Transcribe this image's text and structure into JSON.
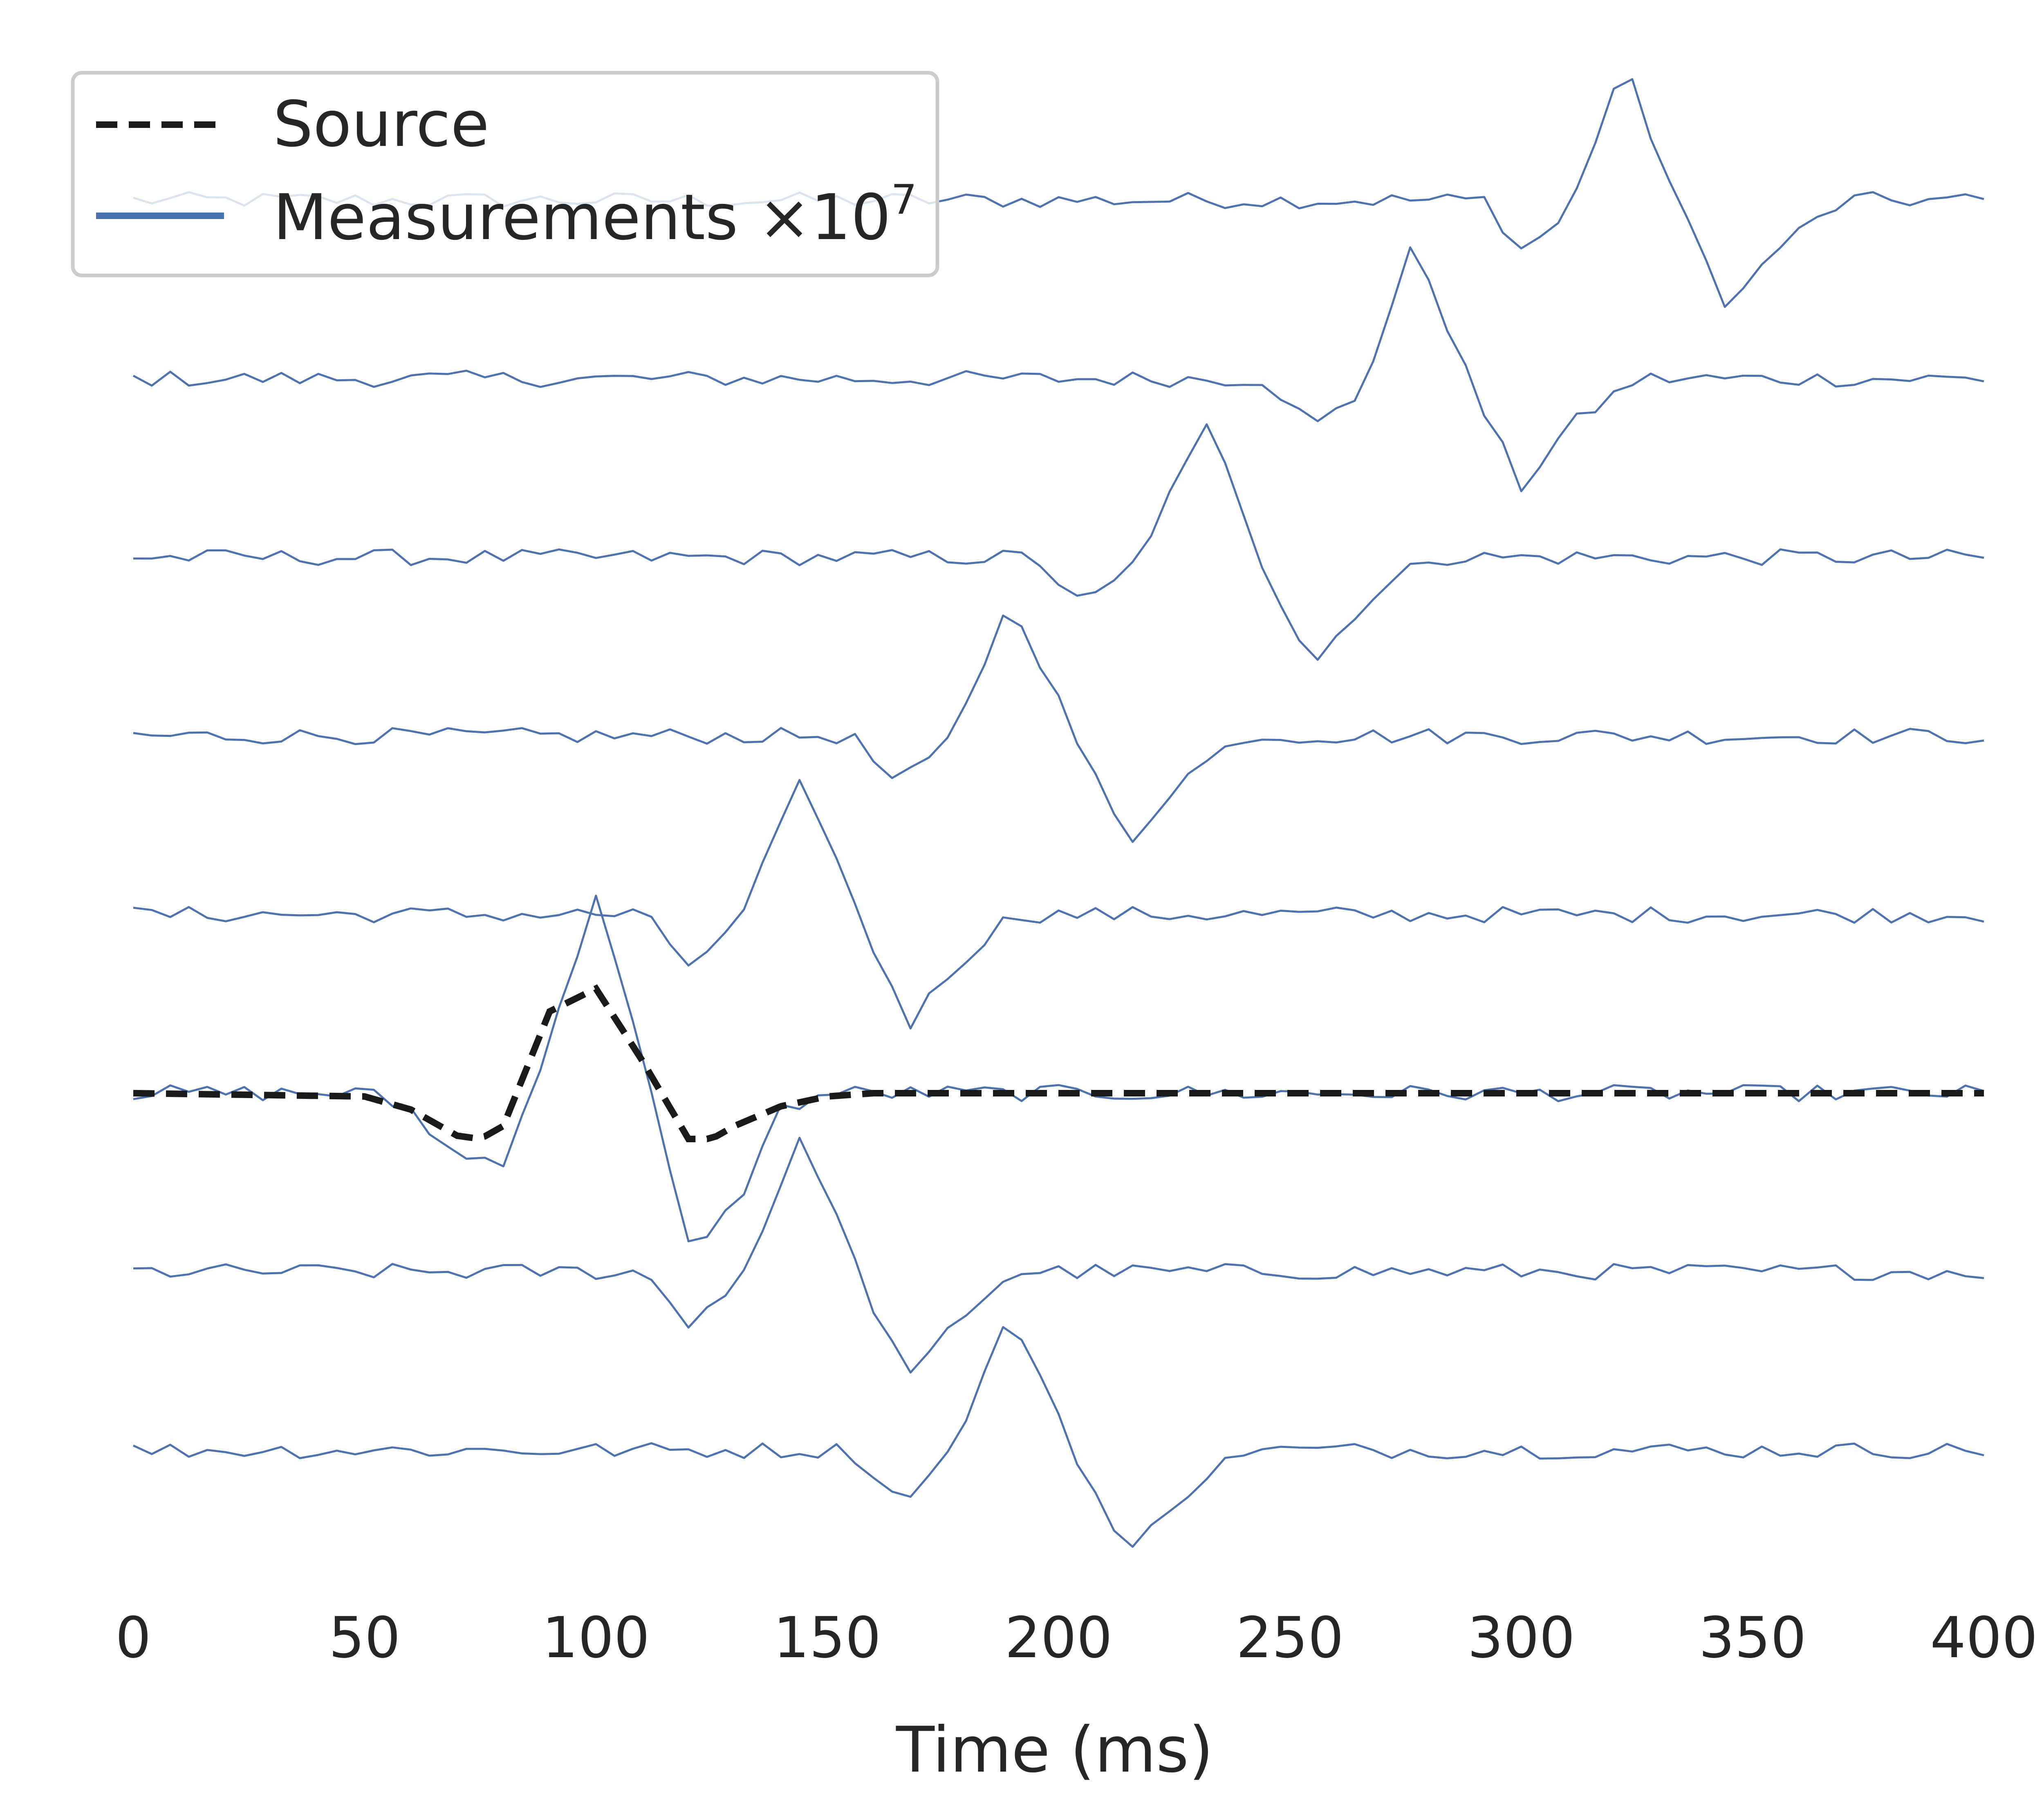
{
  "chart_data": {
    "type": "line",
    "xlabel": "Time (ms)",
    "xlim": [
      0,
      400
    ],
    "x_ticks": [
      0,
      50,
      100,
      150,
      200,
      250,
      300,
      350,
      400
    ],
    "grid": false,
    "legend_position": "top-left",
    "legend": {
      "source_label": "Source",
      "measurements_label": "Measurements ×10",
      "measurements_exponent": "7"
    },
    "colors": {
      "measurements": "#4c72b0",
      "source": "#1a1a1a"
    },
    "source": {
      "name": "Source",
      "trace_index": 5,
      "x": [
        0,
        50,
        60,
        70,
        75,
        80,
        90,
        100,
        110,
        120,
        125,
        130,
        140,
        150,
        160,
        200,
        300,
        400
      ],
      "y": [
        0,
        -0.01,
        -0.05,
        -0.13,
        -0.14,
        -0.1,
        0.25,
        0.32,
        0.1,
        -0.14,
        -0.14,
        -0.1,
        -0.04,
        -0.01,
        0,
        0,
        0,
        0
      ]
    },
    "series": [
      {
        "pulse_x": [
          292,
          300,
          310,
          322,
          335,
          345,
          355,
          370,
          400
        ],
        "pulse_y": [
          0,
          -0.15,
          -0.05,
          0.42,
          -0.05,
          -0.33,
          -0.15,
          0,
          0
        ]
      },
      {
        "pulse_x": [
          245,
          255,
          265,
          277,
          290,
          300,
          310,
          325,
          400
        ],
        "pulse_y": [
          0,
          -0.15,
          -0.05,
          0.42,
          -0.05,
          -0.33,
          -0.15,
          0,
          0
        ]
      },
      {
        "pulse_x": [
          195,
          205,
          215,
          233,
          245,
          255,
          265,
          280,
          400
        ],
        "pulse_y": [
          0,
          -0.15,
          -0.05,
          0.42,
          -0.05,
          -0.33,
          -0.15,
          0,
          0
        ]
      },
      {
        "pulse_x": [
          155,
          165,
          175,
          190,
          205,
          215,
          225,
          240,
          400
        ],
        "pulse_y": [
          0,
          -0.15,
          -0.05,
          0.42,
          -0.05,
          -0.33,
          -0.15,
          0,
          0
        ]
      },
      {
        "pulse_x": [
          110,
          120,
          130,
          145,
          158,
          168,
          178,
          190,
          400
        ],
        "pulse_y": [
          0,
          -0.15,
          -0.05,
          0.42,
          -0.05,
          -0.33,
          -0.15,
          0,
          0
        ]
      },
      {
        "pulse_x": [
          50,
          60,
          70,
          80,
          90,
          100,
          110,
          120,
          130,
          140,
          150,
          400
        ],
        "pulse_y": [
          0,
          -0.05,
          -0.2,
          -0.2,
          0.15,
          0.62,
          0.1,
          -0.47,
          -0.35,
          -0.05,
          0,
          0
        ]
      },
      {
        "pulse_x": [
          110,
          120,
          130,
          145,
          158,
          168,
          178,
          190,
          400
        ],
        "pulse_y": [
          0,
          -0.15,
          -0.05,
          0.42,
          -0.05,
          -0.33,
          -0.15,
          0,
          0
        ]
      },
      {
        "pulse_x": [
          155,
          165,
          175,
          190,
          205,
          215,
          225,
          240,
          400
        ],
        "pulse_y": [
          0,
          -0.15,
          -0.05,
          0.42,
          -0.05,
          -0.33,
          -0.15,
          0,
          0
        ]
      }
    ]
  }
}
